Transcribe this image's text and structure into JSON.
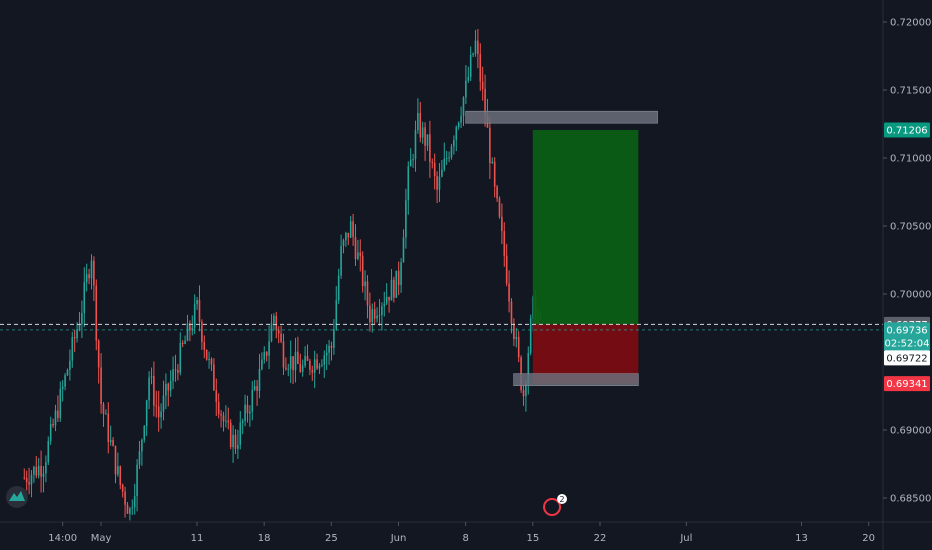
{
  "chart_data": {
    "type": "candlestick",
    "title": "",
    "colors": {
      "background": "#131722",
      "up": "#26a69a",
      "down": "#ef5350",
      "axis_text": "#b2b5be",
      "target_zone": "#0a5f14",
      "stop_zone": "#7d0d12",
      "zone_bar": "#6b6f7a"
    },
    "y_axis": {
      "position": "right",
      "ylim": [
        0.6835,
        0.7215
      ],
      "ticks": [
        0.72,
        0.715,
        0.71,
        0.705,
        0.7,
        0.69,
        0.685
      ],
      "tick_labels": [
        "0.72000",
        "0.71500",
        "0.71000",
        "0.70500",
        "0.70000",
        "0.69000",
        "0.68500"
      ]
    },
    "x_axis": {
      "ticks": [
        {
          "date": "2020-04-27",
          "label": "14:00"
        },
        {
          "date": "2020-05-01",
          "label": "May"
        },
        {
          "date": "2020-05-11",
          "label": "11"
        },
        {
          "date": "2020-05-18",
          "label": "18"
        },
        {
          "date": "2020-05-25",
          "label": "25"
        },
        {
          "date": "2020-06-01",
          "label": "Jun"
        },
        {
          "date": "2020-06-08",
          "label": "8"
        },
        {
          "date": "2020-06-15",
          "label": "15"
        },
        {
          "date": "2020-06-22",
          "label": "22"
        },
        {
          "date": "2020-07-01",
          "label": "Jul"
        },
        {
          "date": "2020-07-13",
          "label": "13"
        },
        {
          "date": "2020-07-20",
          "label": "20"
        }
      ]
    },
    "price_path": [
      {
        "date": "2020-04-23",
        "price": 0.6865
      },
      {
        "date": "2020-04-25",
        "price": 0.6875
      },
      {
        "date": "2020-04-27",
        "price": 0.693
      },
      {
        "date": "2020-04-28",
        "price": 0.696
      },
      {
        "date": "2020-04-29",
        "price": 0.699
      },
      {
        "date": "2020-04-30",
        "price": 0.703
      },
      {
        "date": "2020-05-01",
        "price": 0.692
      },
      {
        "date": "2020-05-03",
        "price": 0.686
      },
      {
        "date": "2020-05-04",
        "price": 0.684
      },
      {
        "date": "2020-05-05",
        "price": 0.688
      },
      {
        "date": "2020-05-06",
        "price": 0.694
      },
      {
        "date": "2020-05-07",
        "price": 0.691
      },
      {
        "date": "2020-05-08",
        "price": 0.693
      },
      {
        "date": "2020-05-11",
        "price": 0.699
      },
      {
        "date": "2020-05-12",
        "price": 0.6955
      },
      {
        "date": "2020-05-14",
        "price": 0.69
      },
      {
        "date": "2020-05-15",
        "price": 0.689
      },
      {
        "date": "2020-05-18",
        "price": 0.695
      },
      {
        "date": "2020-05-19",
        "price": 0.6985
      },
      {
        "date": "2020-05-20",
        "price": 0.6955
      },
      {
        "date": "2020-05-22",
        "price": 0.6945
      },
      {
        "date": "2020-05-25",
        "price": 0.696
      },
      {
        "date": "2020-05-26",
        "price": 0.703
      },
      {
        "date": "2020-05-27",
        "price": 0.705
      },
      {
        "date": "2020-05-28",
        "price": 0.702
      },
      {
        "date": "2020-05-29",
        "price": 0.6985
      },
      {
        "date": "2020-06-01",
        "price": 0.701
      },
      {
        "date": "2020-06-02",
        "price": 0.7085
      },
      {
        "date": "2020-06-03",
        "price": 0.7125
      },
      {
        "date": "2020-06-04",
        "price": 0.711
      },
      {
        "date": "2020-06-05",
        "price": 0.7075
      },
      {
        "date": "2020-06-08",
        "price": 0.715
      },
      {
        "date": "2020-06-09",
        "price": 0.7185
      },
      {
        "date": "2020-06-10",
        "price": 0.7135
      },
      {
        "date": "2020-06-11",
        "price": 0.7075
      },
      {
        "date": "2020-06-12",
        "price": 0.703
      },
      {
        "date": "2020-06-13",
        "price": 0.6975
      },
      {
        "date": "2020-06-14",
        "price": 0.6925
      },
      {
        "date": "2020-06-15",
        "price": 0.699
      },
      {
        "date": "2020-06-16",
        "price": 0.6974
      }
    ],
    "current_price": 0.69736,
    "last_line_price": 0.69777,
    "position": {
      "side": "long",
      "start_date": "2020-06-15",
      "end_date": "2020-06-26",
      "entry": 0.69777,
      "target": 0.71206,
      "stop": 0.69341
    },
    "levels": [
      {
        "name": "upper-zone-bar",
        "price": 0.713,
        "start_date": "2020-06-08",
        "end_date": "2020-06-28"
      },
      {
        "name": "lower-zone-bar",
        "price": 0.6937,
        "start_date": "2020-06-13",
        "end_date": "2020-06-26"
      }
    ],
    "price_tags": [
      {
        "name": "target-price-tag",
        "label": "0.71206",
        "price": 0.71206,
        "bg": "#089981",
        "fg": "#ffffff"
      },
      {
        "name": "entry-price-tag",
        "label": "0.69777",
        "price": 0.69777,
        "bg": "#5d606b",
        "fg": "#ffffff"
      },
      {
        "name": "current-price-tag",
        "label": "0.69736",
        "price": 0.69736,
        "bg": "#26a69a",
        "fg": "#ffffff"
      },
      {
        "name": "countdown-tag",
        "label": "02:52:04",
        "price": 0.6964,
        "bg": "#26a69a",
        "fg": "#ffffff"
      },
      {
        "name": "crosshair-price-tag",
        "label": "0.69722",
        "price": 0.6953,
        "bg": "#ffffff",
        "fg": "#131722"
      },
      {
        "name": "stop-price-tag",
        "label": "0.69341",
        "price": 0.69341,
        "bg": "#f23645",
        "fg": "#ffffff"
      }
    ],
    "events": [
      {
        "date": "2020-06-17",
        "label": "2"
      }
    ]
  }
}
